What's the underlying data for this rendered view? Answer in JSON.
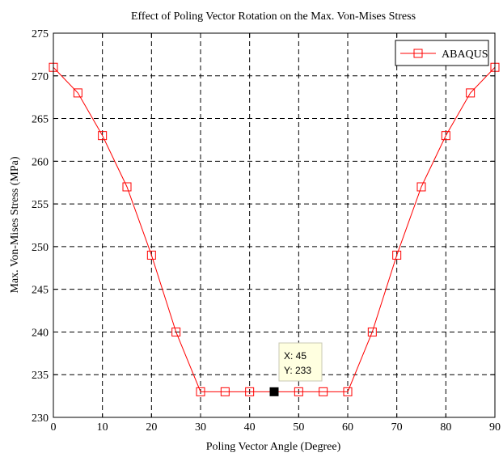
{
  "chart_data": {
    "type": "line",
    "title": "Effect of Poling Vector Rotation on the Max. Von-Mises Stress",
    "xlabel": "Poling Vector Angle (Degree)",
    "ylabel": "Max. Von-Mises Stress (MPa)",
    "xlim": [
      0,
      90
    ],
    "ylim": [
      230,
      275
    ],
    "xticks": [
      0,
      10,
      20,
      30,
      40,
      50,
      60,
      70,
      80,
      90
    ],
    "yticks": [
      230,
      235,
      240,
      245,
      250,
      255,
      260,
      265,
      270,
      275
    ],
    "grid": true,
    "legend_position": "top-right",
    "series": [
      {
        "name": "ABAQUS",
        "color": "#ff0000",
        "marker": "square",
        "x": [
          0,
          5,
          10,
          15,
          20,
          25,
          30,
          35,
          40,
          45,
          50,
          55,
          60,
          65,
          70,
          75,
          80,
          85,
          90
        ],
        "y": [
          271,
          268,
          263,
          257,
          249,
          240,
          233,
          233,
          233,
          233,
          233,
          233,
          233,
          240,
          249,
          257,
          263,
          268,
          271
        ]
      }
    ],
    "datatip": {
      "x_text": "X: 45",
      "y_text": "Y: 233",
      "x": 45,
      "y": 233
    }
  }
}
